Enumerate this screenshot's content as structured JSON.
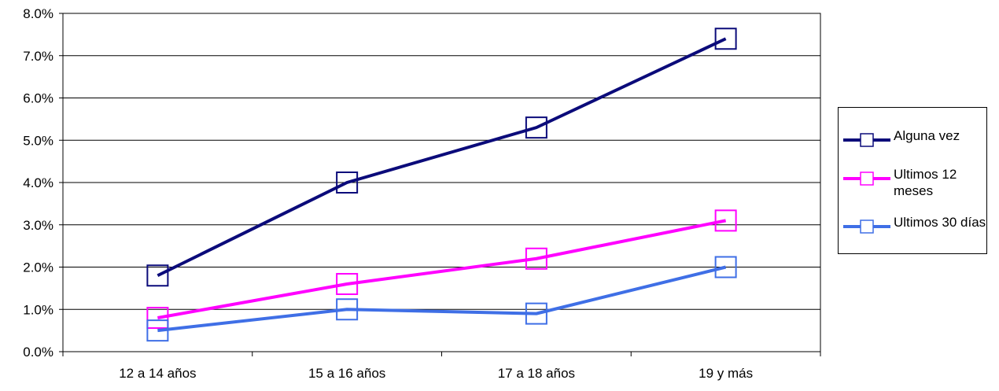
{
  "chart_data": {
    "type": "line",
    "categories": [
      "12 a 14 años",
      "15 a 16 años",
      "17 a 18 años",
      "19 y más"
    ],
    "series": [
      {
        "name": "Alguna vez",
        "color": "#0B0B7A",
        "values": [
          1.8,
          4.0,
          5.3,
          7.4
        ]
      },
      {
        "name": "Ultimos 12 meses",
        "color": "#FF00FF",
        "values": [
          0.8,
          1.6,
          2.2,
          3.1
        ]
      },
      {
        "name": "Ultimos 30 días",
        "color": "#3F6FE6",
        "values": [
          0.5,
          1.0,
          0.9,
          2.0
        ]
      }
    ],
    "ylim": [
      0,
      8
    ],
    "ytick_step": 1,
    "ytick_labels": [
      "0.0%",
      "1.0%",
      "2.0%",
      "3.0%",
      "4.0%",
      "5.0%",
      "6.0%",
      "7.0%",
      "8.0%"
    ],
    "marker": "hollow-square",
    "grid": "horizontal",
    "legend_position": "right"
  }
}
